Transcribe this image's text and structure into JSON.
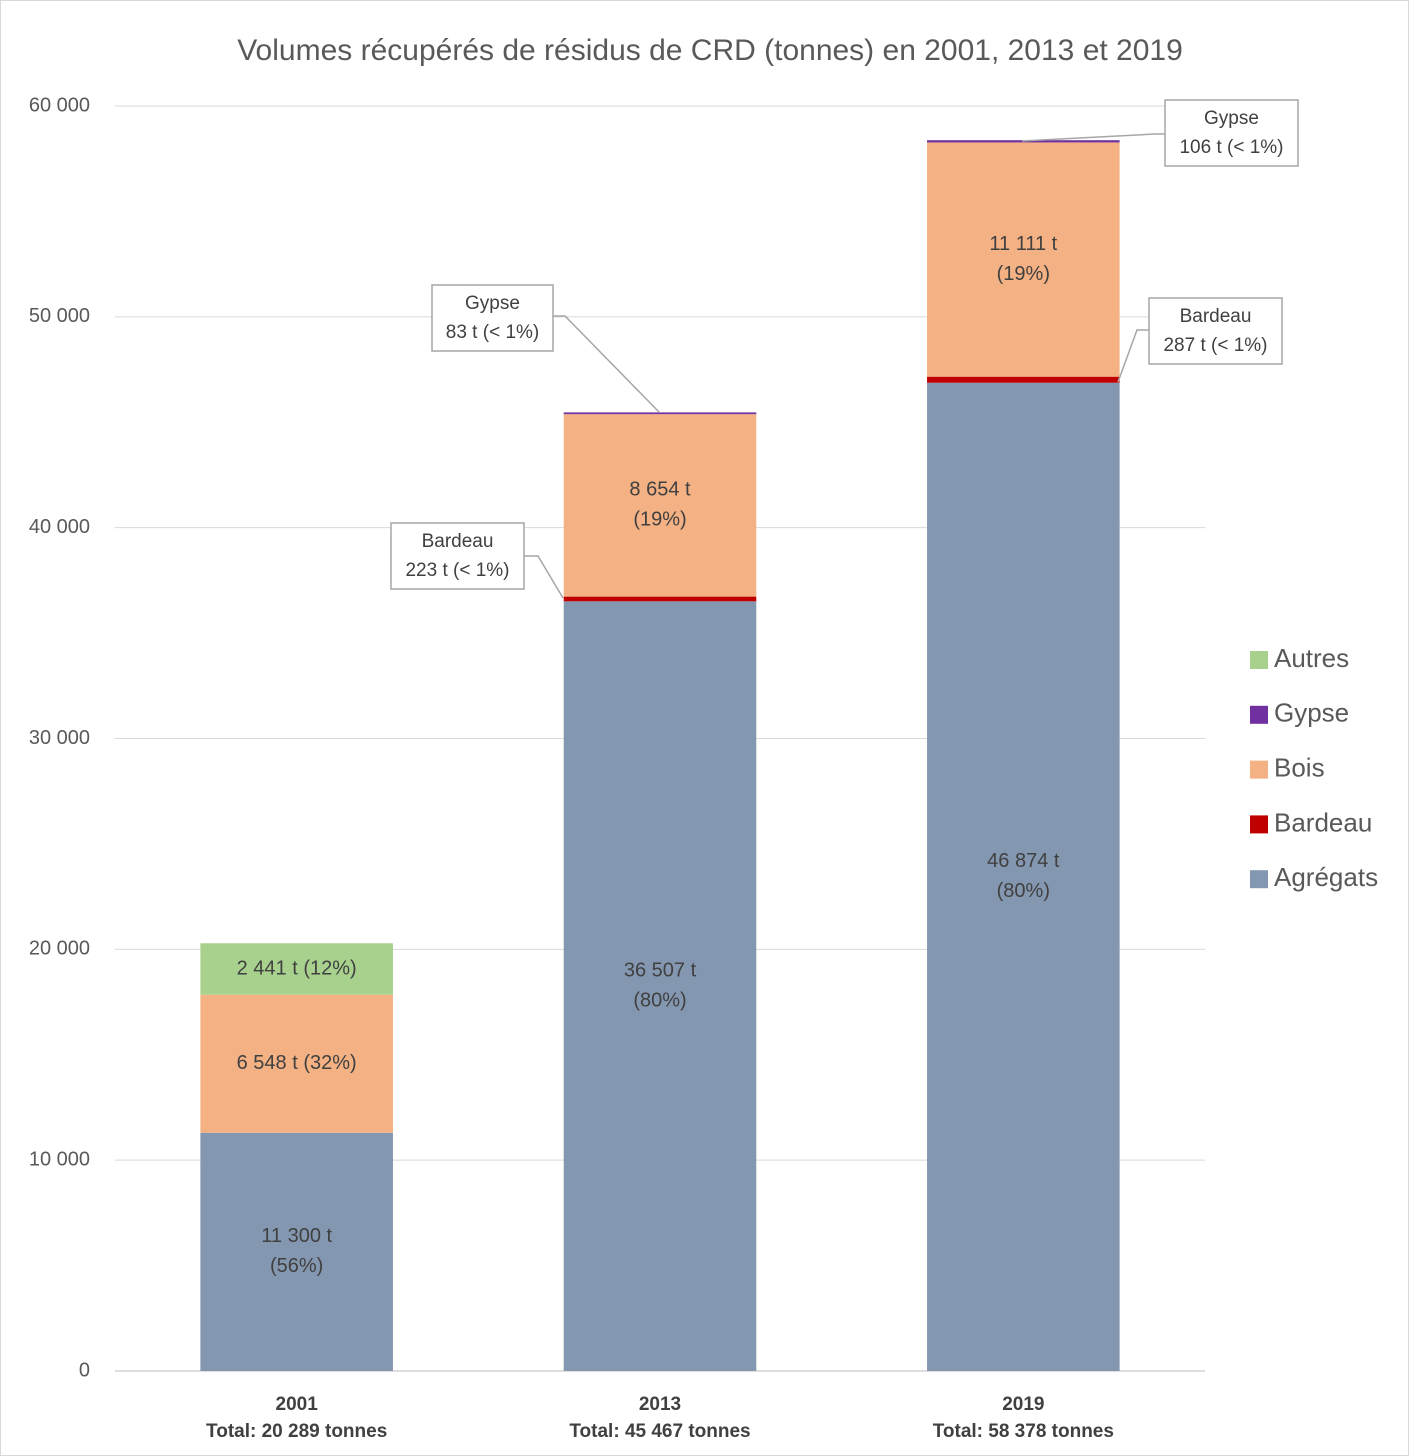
{
  "chart_data": {
    "type": "stacked_bar",
    "title": "Volumes récupérés de résidus de CRD (tonnes) en 2001, 2013 et 2019",
    "categories": [
      "2001",
      "2013",
      "2019"
    ],
    "category_sublabels": [
      "Total: 20 289 tonnes",
      "Total: 45 467 tonnes",
      "Total: 58 378 tonnes"
    ],
    "series": [
      {
        "name": "Agrégats",
        "color": "#8497b0",
        "values": [
          11300,
          36507,
          46874
        ],
        "value_labels": [
          [
            "11 300 t",
            "(56%)"
          ],
          [
            "36 507 t",
            "(80%)"
          ],
          [
            "46 874 t",
            "(80%)"
          ]
        ]
      },
      {
        "name": "Bardeau",
        "color": "#c00000",
        "values": [
          null,
          223,
          287
        ],
        "value_labels": [
          null,
          [
            "223 t (< 1%)"
          ],
          [
            "287 t (< 1%)"
          ]
        ]
      },
      {
        "name": "Bois",
        "color": "#f4b183",
        "values": [
          6548,
          8654,
          11111
        ],
        "value_labels": [
          [
            "6 548 t (32%)"
          ],
          [
            "8 654 t",
            "(19%)"
          ],
          [
            "11 111 t",
            "(19%)"
          ]
        ]
      },
      {
        "name": "Gypse",
        "color": "#7030a0",
        "values": [
          null,
          83,
          106
        ],
        "value_labels": [
          null,
          [
            "83 t (< 1%)"
          ],
          [
            "106 t (< 1%)"
          ]
        ]
      },
      {
        "name": "Autres",
        "color": "#a9d18e",
        "values": [
          2441,
          null,
          null
        ],
        "value_labels": [
          [
            "2 441 t (12%)"
          ],
          null,
          null
        ]
      }
    ],
    "ylim": [
      0,
      60000
    ],
    "yticks": [
      0,
      {
        "value": 10000,
        "label": "10 000"
      },
      {
        "value": 20000,
        "label": "20 000"
      },
      {
        "value": 30000,
        "label": "30 000"
      },
      {
        "value": 40000,
        "label": "40 000"
      },
      {
        "value": 50000,
        "label": "50 000"
      },
      {
        "value": 60000,
        "label": "60 000"
      }
    ],
    "grid": true,
    "legend": "right"
  }
}
